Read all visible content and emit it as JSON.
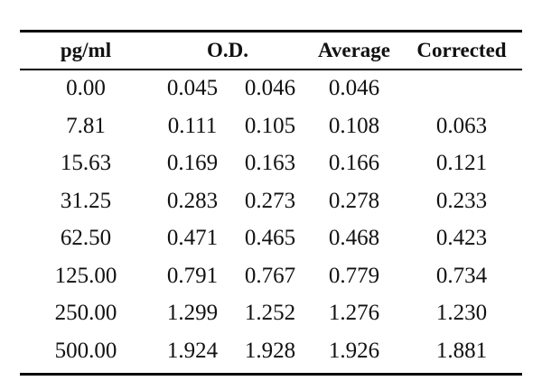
{
  "table": {
    "headers": {
      "pg": "pg/ml",
      "od": "O.D.",
      "average": "Average",
      "corrected": "Corrected"
    },
    "rows": [
      {
        "pg": "0.00",
        "od1": "0.045",
        "od2": "0.046",
        "average": "0.046",
        "corrected": ""
      },
      {
        "pg": "7.81",
        "od1": "0.111",
        "od2": "0.105",
        "average": "0.108",
        "corrected": "0.063"
      },
      {
        "pg": "15.63",
        "od1": "0.169",
        "od2": "0.163",
        "average": "0.166",
        "corrected": "0.121"
      },
      {
        "pg": "31.25",
        "od1": "0.283",
        "od2": "0.273",
        "average": "0.278",
        "corrected": "0.233"
      },
      {
        "pg": "62.50",
        "od1": "0.471",
        "od2": "0.465",
        "average": "0.468",
        "corrected": "0.423"
      },
      {
        "pg": "125.00",
        "od1": "0.791",
        "od2": "0.767",
        "average": "0.779",
        "corrected": "0.734"
      },
      {
        "pg": "250.00",
        "od1": "1.299",
        "od2": "1.252",
        "average": "1.276",
        "corrected": "1.230"
      },
      {
        "pg": "500.00",
        "od1": "1.924",
        "od2": "1.928",
        "average": "1.926",
        "corrected": "1.881"
      }
    ]
  }
}
